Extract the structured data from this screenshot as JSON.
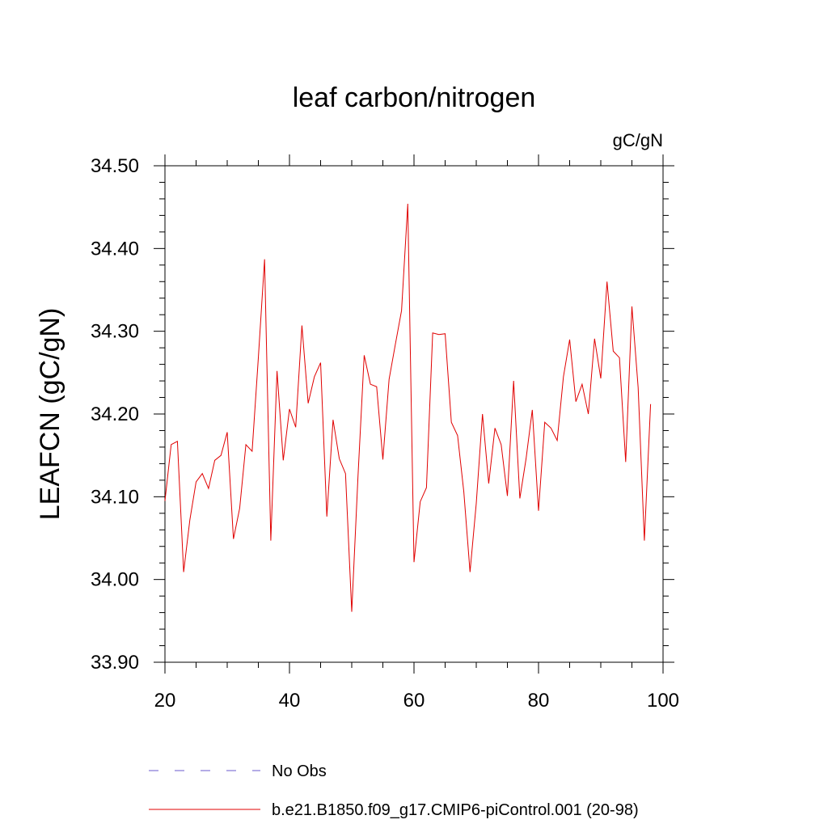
{
  "chart_data": {
    "type": "line",
    "title": "leaf carbon/nitrogen",
    "units_label": "gC/gN",
    "ylabel": "LEAFCN  (gC/gN)",
    "xlabel": "",
    "xlim": [
      20,
      100
    ],
    "ylim": [
      33.9,
      34.5
    ],
    "x_ticks": [
      20,
      40,
      60,
      80,
      100
    ],
    "y_ticks": [
      33.9,
      34.0,
      34.1,
      34.2,
      34.3,
      34.4,
      34.5
    ],
    "y_tick_labels": [
      "33.90",
      "34.00",
      "34.10",
      "34.20",
      "34.30",
      "34.40",
      "34.50"
    ],
    "grid": false,
    "legend": {
      "position": "bottom",
      "entries": [
        {
          "label": "No Obs",
          "color": "#6a5acd",
          "style": "dashed"
        },
        {
          "label": "b.e21.B1850.f09_g17.CMIP6-piControl.001 (20-98)",
          "color": "#e00000",
          "style": "solid"
        }
      ]
    },
    "series": [
      {
        "name": "b.e21.B1850.f09_g17.CMIP6-piControl.001 (20-98)",
        "color": "#e00000",
        "x": [
          20,
          21,
          22,
          23,
          24,
          25,
          26,
          27,
          28,
          29,
          30,
          31,
          32,
          33,
          34,
          35,
          36,
          37,
          38,
          39,
          40,
          41,
          42,
          43,
          44,
          45,
          46,
          47,
          48,
          49,
          50,
          51,
          52,
          53,
          54,
          55,
          56,
          57,
          58,
          59,
          60,
          61,
          62,
          63,
          64,
          65,
          66,
          67,
          68,
          69,
          70,
          71,
          72,
          73,
          74,
          75,
          76,
          77,
          78,
          79,
          80,
          81,
          82,
          83,
          84,
          85,
          86,
          87,
          88,
          89,
          90,
          91,
          92,
          93,
          94,
          95,
          96,
          97,
          98
        ],
        "values": [
          34.095,
          34.163,
          34.167,
          34.009,
          34.072,
          34.118,
          34.128,
          34.11,
          34.144,
          34.15,
          34.178,
          34.049,
          34.086,
          34.163,
          34.155,
          34.268,
          34.387,
          34.047,
          34.252,
          34.144,
          34.206,
          34.184,
          34.307,
          34.213,
          34.245,
          34.262,
          34.076,
          34.193,
          34.146,
          34.128,
          33.961,
          34.124,
          34.271,
          34.236,
          34.233,
          34.145,
          34.242,
          34.284,
          34.325,
          34.454,
          34.021,
          34.094,
          34.111,
          34.298,
          34.296,
          34.297,
          34.19,
          34.174,
          34.106,
          34.009,
          34.092,
          34.2,
          34.116,
          34.183,
          34.163,
          34.101,
          34.24,
          34.098,
          34.146,
          34.205,
          34.083,
          34.19,
          34.183,
          34.168,
          34.245,
          34.29,
          34.215,
          34.236,
          34.2,
          34.291,
          34.243,
          34.36,
          34.276,
          34.268,
          34.142,
          34.33,
          34.232,
          34.047,
          34.212
        ]
      }
    ]
  }
}
